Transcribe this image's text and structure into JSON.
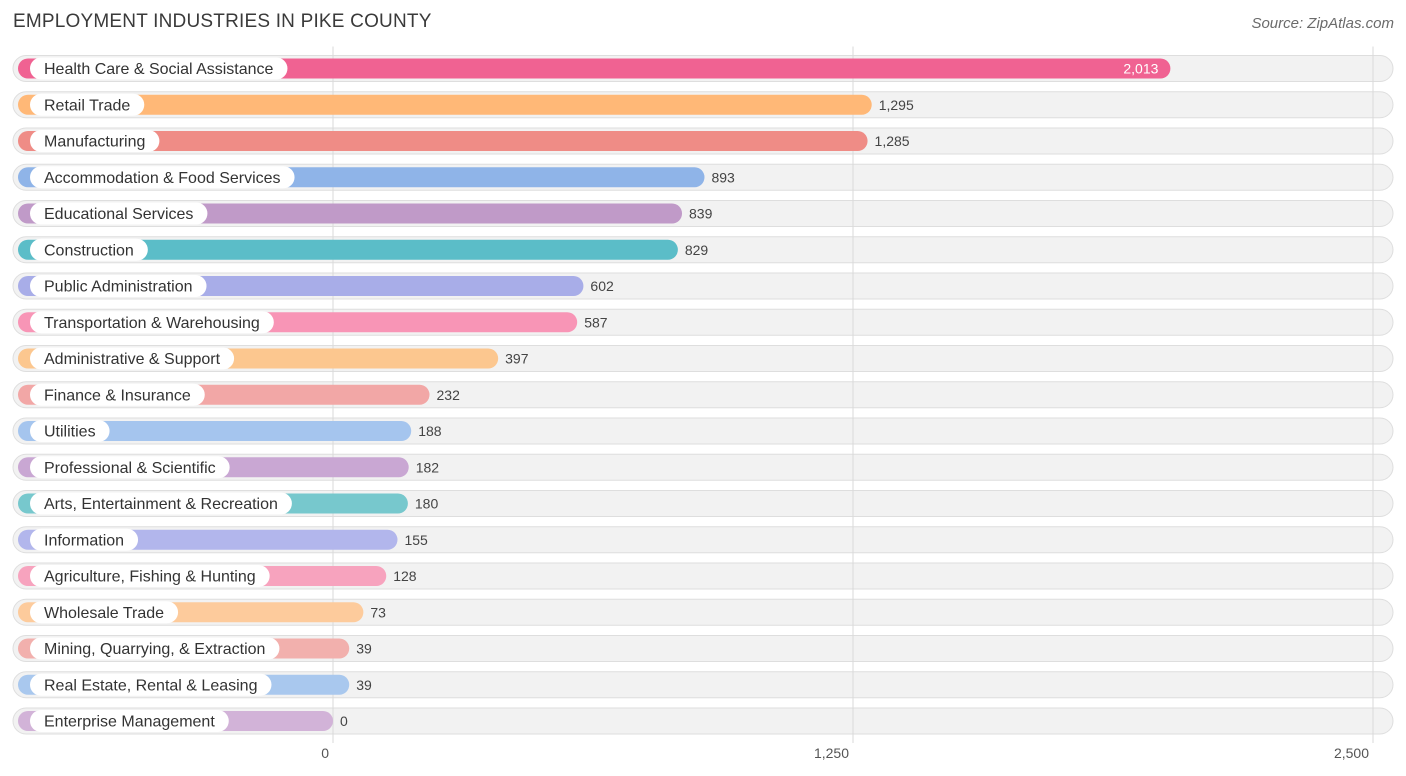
{
  "chart_data": {
    "type": "bar",
    "orientation": "horizontal",
    "title": "EMPLOYMENT INDUSTRIES IN PIKE COUNTY",
    "source": "Source: ZipAtlas.com",
    "categories": [
      "Health Care & Social Assistance",
      "Retail Trade",
      "Manufacturing",
      "Accommodation & Food Services",
      "Educational Services",
      "Construction",
      "Public Administration",
      "Transportation & Warehousing",
      "Administrative & Support",
      "Finance & Insurance",
      "Utilities",
      "Professional & Scientific",
      "Arts, Entertainment & Recreation",
      "Information",
      "Agriculture, Fishing & Hunting",
      "Wholesale Trade",
      "Mining, Quarrying, & Extraction",
      "Real Estate, Rental & Leasing",
      "Enterprise Management"
    ],
    "values": [
      2013,
      1295,
      1285,
      893,
      839,
      829,
      602,
      587,
      397,
      232,
      188,
      182,
      180,
      155,
      128,
      73,
      39,
      39,
      0
    ],
    "value_labels": [
      "2,013",
      "1,295",
      "1,285",
      "893",
      "839",
      "829",
      "602",
      "587",
      "397",
      "232",
      "188",
      "182",
      "180",
      "155",
      "128",
      "73",
      "39",
      "39",
      "0"
    ],
    "colors": [
      "#f06292",
      "#ffb877",
      "#ef8c86",
      "#8fb4e8",
      "#c09ac8",
      "#5bbdc8",
      "#a8ade8",
      "#f895b6",
      "#fcc78f",
      "#f2a7a6",
      "#a5c5ee",
      "#c9a7d3",
      "#77c8cd",
      "#b2b6ec",
      "#f7a3be",
      "#fdcb9c",
      "#f2b0ad",
      "#a9c8ee",
      "#d2b3d8"
    ],
    "xlim": [
      0,
      2500
    ],
    "xticks": [
      0,
      1250,
      2500
    ],
    "xtick_labels": [
      "0",
      "1,250",
      "2,500"
    ],
    "grid": true
  }
}
